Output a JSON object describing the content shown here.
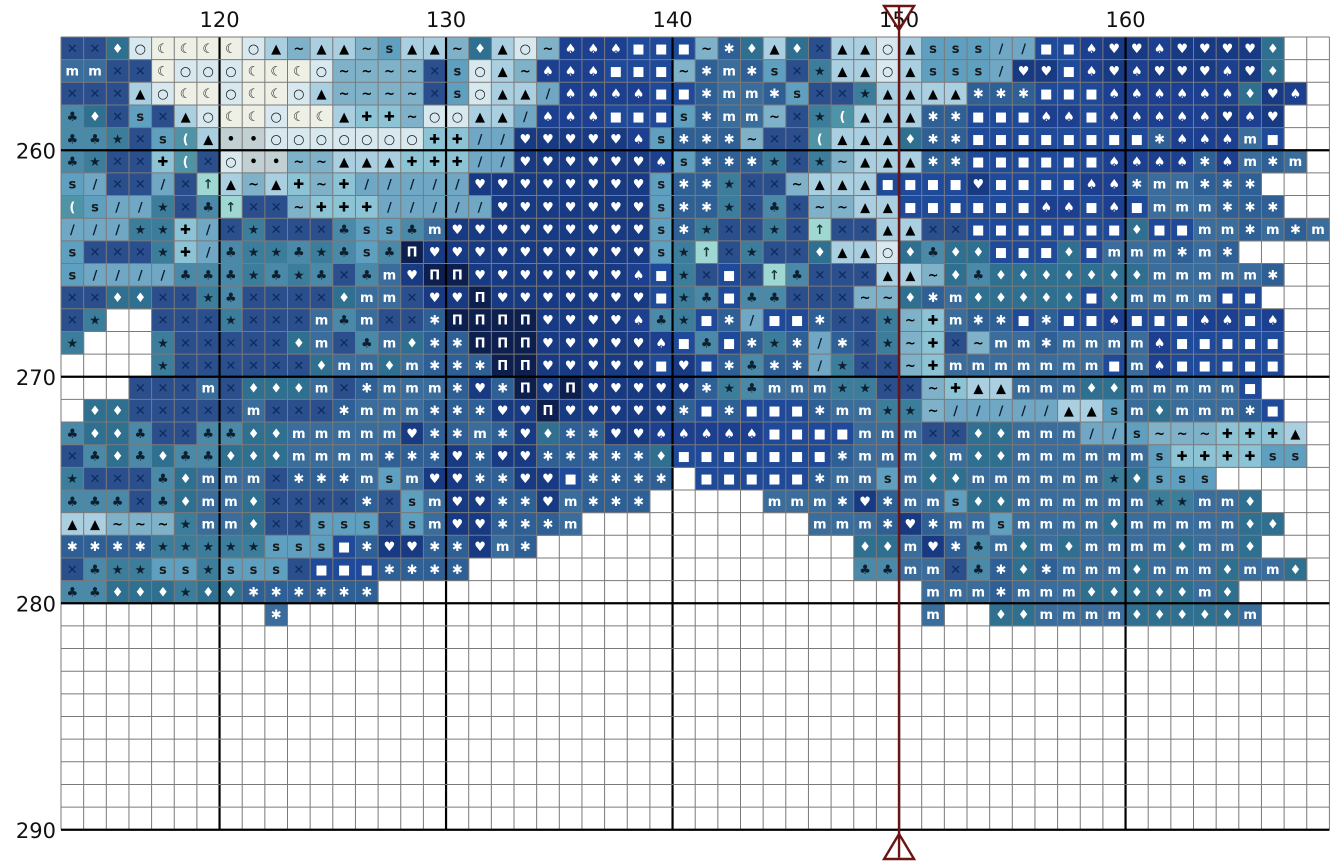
{
  "pattern": {
    "col_start": 113,
    "row_start": 255,
    "cols": 56,
    "rows": 35,
    "stitched_rows": 25,
    "grid_line_color": "#7a7a7a",
    "major_line_color": "#000000",
    "background_color": "#ffffff",
    "column_labels": [
      "120",
      "130",
      "140",
      "150",
      "160"
    ],
    "row_labels": [
      "260",
      "270",
      "280",
      "290"
    ],
    "marker_column": 150,
    "marker_color": "#6b1414"
  },
  "palette": [
    {
      "id": "A",
      "color": "#2b4e8c",
      "symbol": "x",
      "text": "#0d2a5a"
    },
    {
      "id": "B",
      "color": "#3a6d9b",
      "symbol": "m",
      "text": "#ffffff"
    },
    {
      "id": "C",
      "color": "#2f6f8f",
      "symbol": "diamond",
      "text": "#ffffff"
    },
    {
      "id": "D",
      "color": "#d8e8ef",
      "symbol": "circle",
      "text": "#1a1a1a"
    },
    {
      "id": "E",
      "color": "#eef0e6",
      "symbol": "moon",
      "text": "#1a1a1a"
    },
    {
      "id": "F",
      "color": "#a9cfe0",
      "symbol": "tri",
      "text": "#000000"
    },
    {
      "id": "G",
      "color": "#7fb2c9",
      "symbol": "wave",
      "text": "#000000"
    },
    {
      "id": "H",
      "color": "#5f9fbf",
      "symbol": "s",
      "text": "#1a1a1a"
    },
    {
      "id": "I",
      "color": "#1c3f8f",
      "symbol": "spade",
      "text": "#ffffff"
    },
    {
      "id": "J",
      "color": "#1f4a9a",
      "symbol": "square",
      "text": "#ffffff"
    },
    {
      "id": "K",
      "color": "#173a82",
      "symbol": "heart",
      "text": "#ffffff"
    },
    {
      "id": "L",
      "color": "#2e5f95",
      "symbol": "star6",
      "text": "#ffffff"
    },
    {
      "id": "M",
      "color": "#4a8aa8",
      "symbol": "club",
      "text": "#0d2030"
    },
    {
      "id": "N",
      "color": "#6fa7c4",
      "symbol": "pct",
      "text": "#0d2030"
    },
    {
      "id": "O",
      "color": "#3d7d9c",
      "symbol": "star",
      "text": "#0d2030"
    },
    {
      "id": "P",
      "color": "#8cc4d6",
      "symbol": "cross",
      "text": "#000000"
    },
    {
      "id": "Q",
      "color": "#0d1f4f",
      "symbol": "pi",
      "text": "#ffffff"
    },
    {
      "id": "R",
      "color": "#9fd8d2",
      "symbol": "arrow",
      "text": "#1a3a3a"
    },
    {
      "id": "T",
      "color": "#c2d0d4",
      "symbol": "dot",
      "text": "#000000"
    },
    {
      "id": "U",
      "color": "#4f93a6",
      "symbol": "paren",
      "text": "#ffffff"
    }
  ],
  "grid": [
    "AACDEEEEDFGFFGHFFGCFDGIIIJJJGLCFCAFFDFHHHNNJJIKKIKKKKC",
    "BBAAEDDDEEEDGGGGAHDFGIIIJJJGLBLHAOFFDFHHHNKKJIKIKKKIKC",
    "AAAFDEEDEEDFGGGGAHDFFNIIIIJJLBBLHAAOFFFFLLLJJJIIIIIICKI",
    "MCAHAFDEEDEEFPPGDDFFNIIIJJJHLBBGAOUFFFLLJJJIIJIIIIIKIK",
    "MMOAHUFTTDDDDDDDPPNNKKKKKIHLLLGAAUFFFCLLJJJJJJJJLIIIBJ",
    "MOAAPUADTTGGFFFPPPNNKKKKKKIHLLLOAOGFFFLLJJJJJJIIIILIBLB",
    "HNAANARFGFPGPNNNNNKKKKKKKKHLLOAAGFFFJJJJKJJJJIILBBLLL",
    "UHNNOAMRAAGPPPNNNNNKKKKKKKHLLOAMAGGFFJJJJJJIIJIJBBBLLL",
    "NNNOOPNAOAAAMHHMBKKKKKKKKKHLOAAOARAAFFAAJJJJJJJCJJBBLBLB",
    "HAAAOPNMOOMOMHMQKKKKKKKKKKHORAOAACFFDCMCCJJJCJBBBLBL",
    "HNNNNMMMOMOMAMBKQQKKKKKKKIJOAJARMAAAFFGCMCCCCCCCBBBBBL",
    "AACCAAOMAAAACBBAKKQKKKKKKKJOMJMMAAAGGCLBCCCCCJCBBBBJJ",
    "AOWWAAAOAAABMBAALQQQQKKKKIMOJLNJJLAAOGPBLLJLJJIJJJIIJI",
    "OWWWOAAAAACBAMBCLLQQQKKKKKIJMJLOLNLAOGPAGBBLBBBBIJJJJJ",
    "WWWWOAAAAAACBBCBLLLQQKKKKKJKJLMLLNOAAGPBBBBBBBJBIJJJJJ",
    "WWWAAABACCCBALBBBLKLQKQKKKKKLOMBBBOOAAGPFFBBBCCBBBBBJ",
    "WCCAAAAABAAALBBBLLLKKQKKKKKLJLJJJLBBOOGNNNNNFFHBCBBBLJ",
    "MCCMAAMMCCBBBBBKLLBLKCLLKKIIIIIJJJJBBBAACCBBBNNHGGGPPPF",
    "AMCMCMMCCCBBBBLLLKLKKLLLLLCJJJJJJJLBBBCBCCBBBBBBHPPPPHH",
    "OAAAMCBBBALLLBHBKKLLKKJLLLLWJJJJJLBBHBCCBBBBBBOCHHH",
    "MMMAMCBBCAAAALAHBKKLLKBLLLWWWWWBBBLKLBBHCCBBBBBBOOBBC",
    "FFGGGOBBCAAHHHAHBKKLLLBWWWWWWWWWWBBBLKLBBHBBBBCBBBBBCC",
    "LLLLOOOOOHHHJLKKLLKBLWWWWWWWWWWWWWWCCBKLMBCBCBBBBCBBC",
    "AMOOHHOHHHAJJJLLLLWWWWWWWWWWWWWWWWWMMBBAMLCLBBBCBBBCBBC",
    "MMCCCOCCLLLLLLWWWWWWWWWWWWWWWWWWWWWWWWBBBLBBBCCCCCBC"
  ],
  "stray_cells": [
    {
      "col": 122,
      "row": 280,
      "color": "#3a6d9b",
      "symbol": "star6"
    },
    {
      "col": 151,
      "row": 280,
      "color": "#3a6d9b",
      "symbol": "m"
    },
    {
      "col": 154,
      "row": 280,
      "color": "#2f6f8f",
      "symbol": "diamond"
    },
    {
      "col": 155,
      "row": 280,
      "color": "#2f6f8f",
      "symbol": "diamond"
    },
    {
      "col": 156,
      "row": 280,
      "color": "#3a6d9b",
      "symbol": "m"
    },
    {
      "col": 157,
      "row": 280,
      "color": "#3a6d9b",
      "symbol": "m"
    },
    {
      "col": 158,
      "row": 280,
      "color": "#3a6d9b",
      "symbol": "m"
    },
    {
      "col": 159,
      "row": 280,
      "color": "#3a6d9b",
      "symbol": "m"
    },
    {
      "col": 160,
      "row": 280,
      "color": "#2f6f8f",
      "symbol": "diamond"
    },
    {
      "col": 161,
      "row": 280,
      "color": "#2f6f8f",
      "symbol": "diamond"
    },
    {
      "col": 162,
      "row": 280,
      "color": "#2f6f8f",
      "symbol": "diamond"
    },
    {
      "col": 163,
      "row": 280,
      "color": "#2f6f8f",
      "symbol": "diamond"
    },
    {
      "col": 164,
      "row": 280,
      "color": "#2f6f8f",
      "symbol": "diamond"
    },
    {
      "col": 165,
      "row": 280,
      "color": "#3a6d9b",
      "symbol": "m"
    }
  ]
}
